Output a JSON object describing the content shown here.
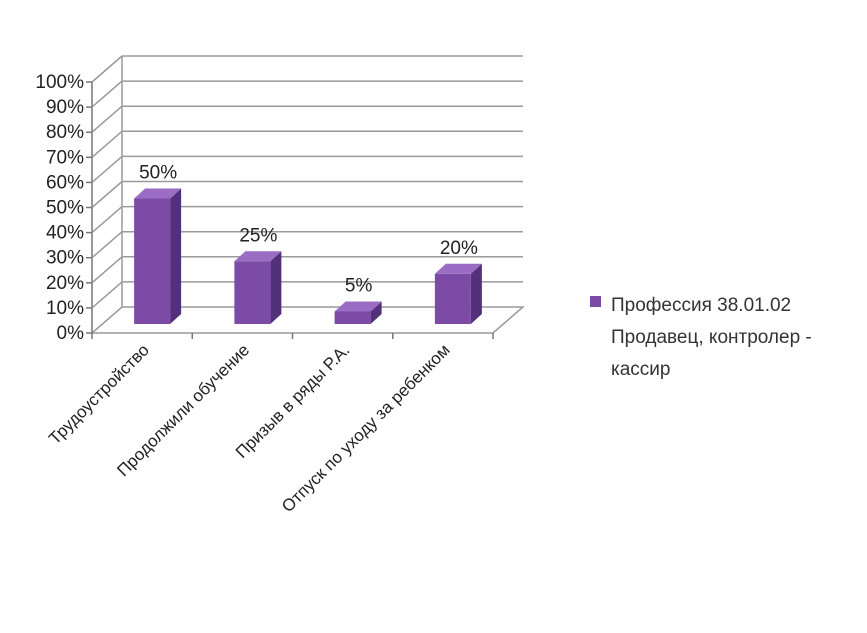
{
  "chart_data": {
    "type": "bar",
    "categories": [
      "Трудоустройство",
      "Продолжили обучение",
      "Призыв в ряды Р.А.",
      "Отпуск по уходу за ребенком"
    ],
    "series": [
      {
        "name": "Профессия 38.01.02 Продавец, контролер - кассир",
        "values": [
          50,
          25,
          5,
          20
        ]
      }
    ],
    "data_labels": [
      "50%",
      "25%",
      "5%",
      "20%"
    ],
    "y_ticks": [
      "0%",
      "10%",
      "20%",
      "30%",
      "40%",
      "50%",
      "60%",
      "70%",
      "80%",
      "90%",
      "100%"
    ],
    "ylim": [
      0,
      100
    ],
    "grid": true,
    "legend_position": "right",
    "bar_color": "#7B4BA6",
    "bar_top_color": "#9A6CC4",
    "bar_side_color": "#53307A",
    "title": "",
    "xlabel": "",
    "ylabel": ""
  }
}
